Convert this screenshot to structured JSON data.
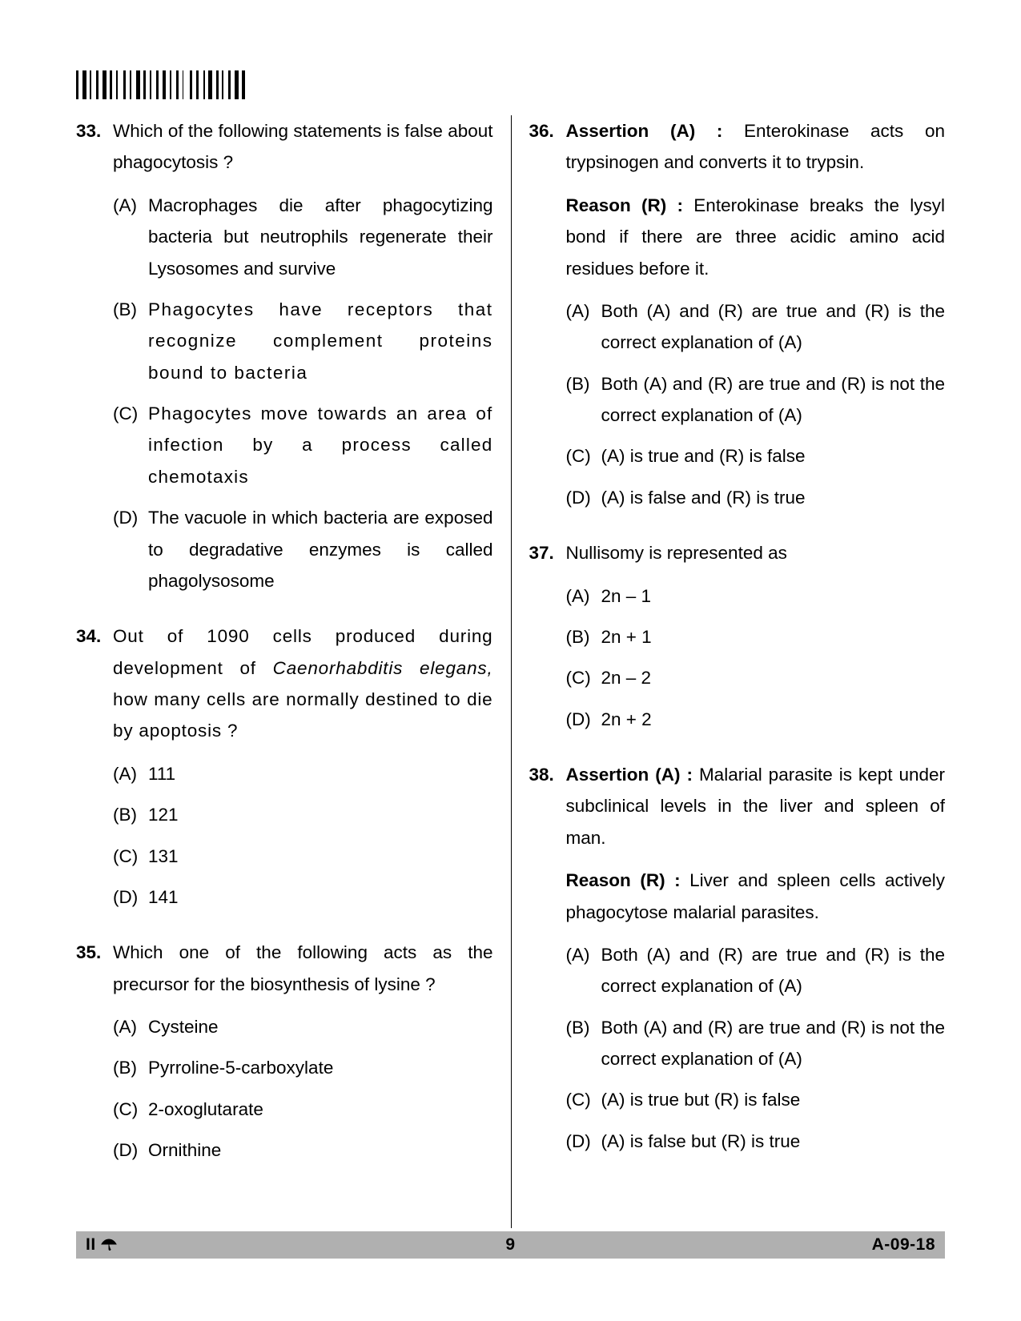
{
  "page": {
    "number": "9",
    "code_right": "A-09-18",
    "code_left": "II"
  },
  "left": [
    {
      "num": "33.",
      "stem": "Which of the following statements is false about phagocytosis ?",
      "options": [
        {
          "l": "(A)",
          "t": "Macrophages die after phagocytizing bacteria but neutrophils regenerate their Lysosomes and survive"
        },
        {
          "l": "(B)",
          "t": "Phagocytes have receptors that recognize complement proteins bound to bacteria"
        },
        {
          "l": "(C)",
          "t": "Phagocytes move towards an area of infection by a process called chemotaxis"
        },
        {
          "l": "(D)",
          "t": "The vacuole in which bacteria are exposed to degradative enzymes is called phagolysosome"
        }
      ]
    },
    {
      "num": "34.",
      "stem_pre": "Out of 1090 cells produced during development of ",
      "stem_italic": "Caenorhabditis elegans,",
      "stem_post": " how many cells are normally destined to die by apoptosis ?",
      "options": [
        {
          "l": "(A)",
          "t": "111"
        },
        {
          "l": "(B)",
          "t": "121"
        },
        {
          "l": "(C)",
          "t": "131"
        },
        {
          "l": "(D)",
          "t": "141"
        }
      ]
    },
    {
      "num": "35.",
      "stem": "Which one of the following acts as the precursor for the biosynthesis of lysine ?",
      "options": [
        {
          "l": "(A)",
          "t": "Cysteine"
        },
        {
          "l": "(B)",
          "t": " Pyrroline-5-carboxylate"
        },
        {
          "l": "(C)",
          "t": "2-oxoglutarate"
        },
        {
          "l": "(D)",
          "t": "Ornithine"
        }
      ]
    }
  ],
  "right": [
    {
      "num": "36.",
      "assertion_label": "Assertion (A) : ",
      "assertion": "Enterokinase acts on trypsinogen and converts it to trypsin.",
      "reason_label": "Reason (R) : ",
      "reason": "Enterokinase breaks the lysyl bond if there are three acidic amino acid residues before it.",
      "options": [
        {
          "l": "(A)",
          "t": "Both (A) and (R) are true and (R) is the correct explanation of (A)"
        },
        {
          "l": "(B)",
          "t": "Both (A) and (R) are true and (R) is not the correct explanation of (A)"
        },
        {
          "l": "(C)",
          "t": "(A) is true and (R) is false"
        },
        {
          "l": "(D)",
          "t": "(A) is false and (R) is true"
        }
      ]
    },
    {
      "num": "37.",
      "stem": "Nullisomy is represented as",
      "options": [
        {
          "l": "(A)",
          "t": "2n – 1"
        },
        {
          "l": "(B)",
          "t": "2n + 1"
        },
        {
          "l": "(C)",
          "t": "2n – 2"
        },
        {
          "l": "(D)",
          "t": "2n + 2"
        }
      ]
    },
    {
      "num": "38.",
      "assertion_label": "Assertion (A) : ",
      "assertion": "Malarial parasite is kept under subclinical levels in the liver and spleen of man.",
      "reason_label": "Reason (R) : ",
      "reason": "Liver and spleen cells actively phagocytose malarial parasites.",
      "options": [
        {
          "l": "(A)",
          "t": "Both (A) and (R) are true and (R) is the correct explanation of (A)"
        },
        {
          "l": "(B)",
          "t": "Both (A) and (R) are true and (R) is not the correct explanation of (A)"
        },
        {
          "l": "(C)",
          "t": "(A) is true but (R) is false"
        },
        {
          "l": "(D)",
          "t": "(A) is false but (R) is true"
        }
      ]
    }
  ],
  "barcode_widths": [
    2,
    1,
    3,
    1,
    1,
    2,
    2,
    1,
    3,
    1,
    2,
    1,
    1,
    3,
    2,
    1,
    1,
    2,
    3,
    1,
    2,
    1,
    1,
    2,
    2,
    1,
    3,
    1,
    1,
    2,
    2,
    1,
    1,
    3,
    2,
    1,
    2,
    2,
    1,
    1,
    3,
    1,
    2,
    1,
    1,
    2,
    2,
    1,
    3,
    1,
    2,
    1
  ]
}
